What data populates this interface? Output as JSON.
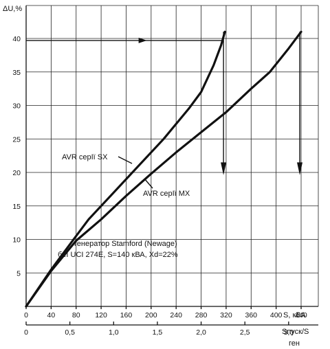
{
  "chart_data": {
    "type": "line",
    "ylabel": "ΔU,%",
    "xlabel": "S, кВА",
    "xlabel2_top": "Sпуск/S",
    "xlabel2_bottom": "ген",
    "xlim": [
      0,
      440
    ],
    "ylim": [
      0,
      42
    ],
    "x_ticks": [
      0,
      40,
      80,
      120,
      160,
      200,
      240,
      280,
      320,
      360,
      400,
      440
    ],
    "y_ticks": [
      5,
      10,
      15,
      20,
      25,
      30,
      35,
      40
    ],
    "x2_ticks": [
      "0",
      "0,5",
      "1,0",
      "1,5",
      "2,0",
      "2,5",
      "3,0"
    ],
    "x2_values": [
      0,
      0.5,
      1.0,
      1.5,
      2.0,
      2.5,
      3.0
    ],
    "x2_scale_kva_per_unit": 140,
    "series": [
      {
        "name": "AVR серІї SX",
        "x": [
          0,
          40,
          80,
          100,
          140,
          180,
          220,
          260,
          280,
          300,
          312,
          318
        ],
        "y": [
          0,
          5.5,
          10.5,
          13,
          17,
          21,
          25,
          29.5,
          32,
          36,
          39,
          41
        ]
      },
      {
        "name": "AVR серІї MX",
        "x": [
          0,
          40,
          80,
          120,
          160,
          200,
          240,
          280,
          320,
          360,
          390,
          420,
          440
        ],
        "y": [
          0,
          5.3,
          9.8,
          13,
          16.5,
          19.8,
          23,
          26,
          29,
          32.5,
          35,
          38.5,
          41
        ]
      }
    ],
    "annotations": {
      "generator_line1": "генератор Stamford (Newage)",
      "generator_line2": "бёІ UCI 274E, S=140 кВА, Xd=22%"
    }
  }
}
